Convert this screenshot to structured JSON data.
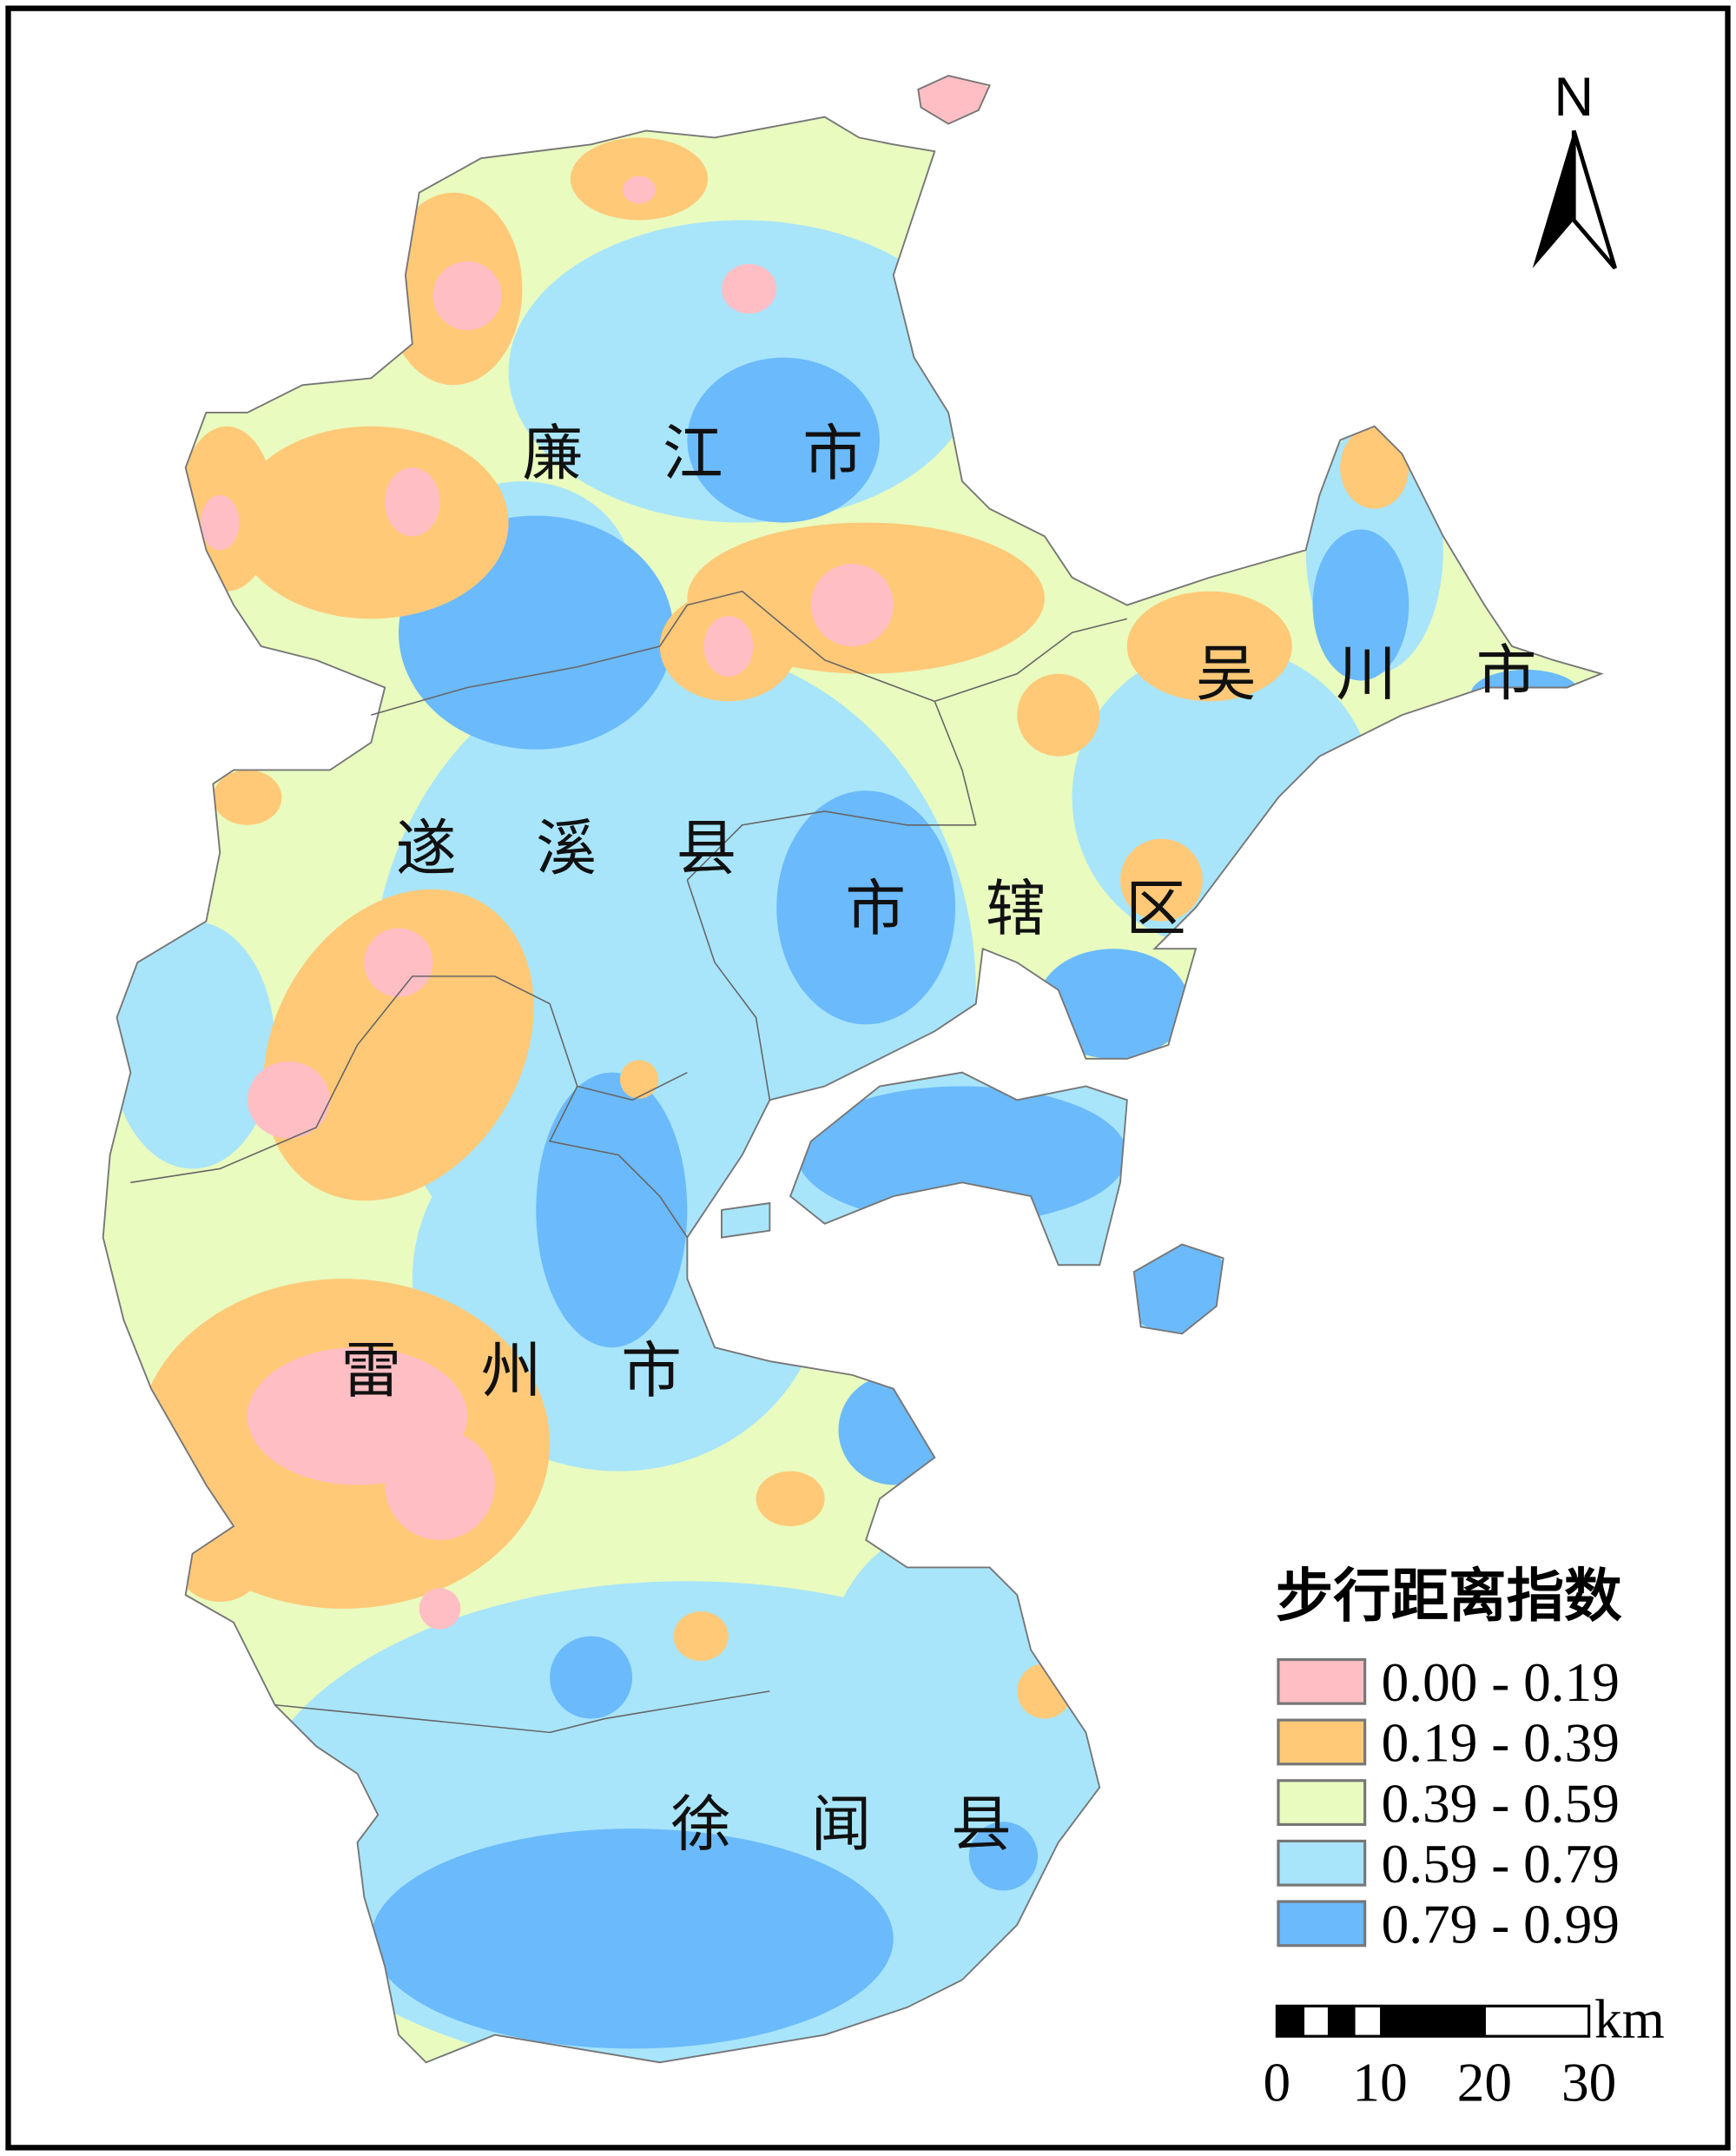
{
  "map": {
    "regions": [
      {
        "id": "lianjiang",
        "label": "廉 江 市"
      },
      {
        "id": "wuchuan",
        "label": "吴 川 市"
      },
      {
        "id": "suixi",
        "label": "遂 溪 县"
      },
      {
        "id": "shixiaqu",
        "label": "市 辖 区"
      },
      {
        "id": "leizhou",
        "label": "雷 州 市"
      },
      {
        "id": "xuwen",
        "label": "徐 闻 县"
      }
    ],
    "north_arrow": {
      "label": "N"
    }
  },
  "legend": {
    "title": "步行距离指数",
    "classes": [
      {
        "range": "0.00 - 0.19",
        "color": "#FFBEC4"
      },
      {
        "range": "0.19 - 0.39",
        "color": "#FFC978"
      },
      {
        "range": "0.39 - 0.59",
        "color": "#E9FBBF"
      },
      {
        "range": "0.59 - 0.79",
        "color": "#A8E5FB"
      },
      {
        "range": "0.79 - 0.99",
        "color": "#6BBAFB"
      }
    ]
  },
  "scale_bar": {
    "unit": "km",
    "ticks": [
      "0",
      "10",
      "20",
      "30"
    ]
  }
}
